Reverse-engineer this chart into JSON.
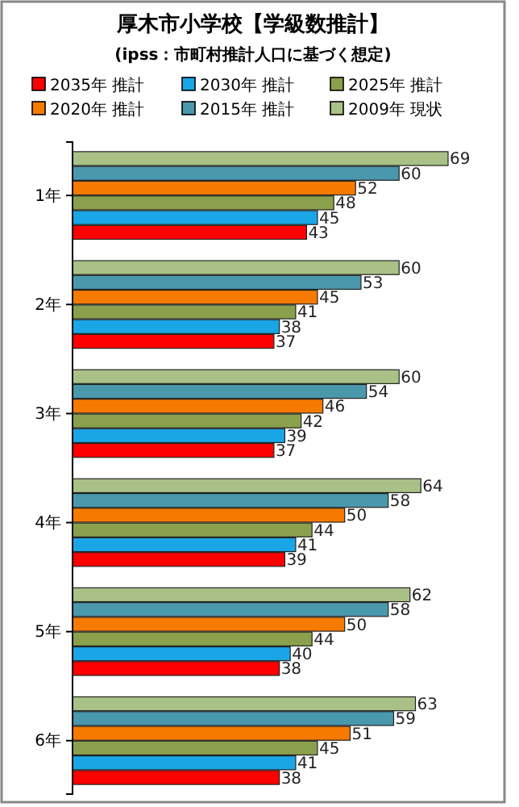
{
  "chart_data": {
    "type": "bar",
    "orientation": "horizontal",
    "title": "厚木市小学校【学級数推計】",
    "subtitle": "(ipss：市町村推計人口に基づく想定)",
    "categories": [
      "1年",
      "2年",
      "3年",
      "4年",
      "5年",
      "6年"
    ],
    "series": [
      {
        "name": "2035年 推計",
        "color": "#ff0000",
        "values": [
          43,
          37,
          37,
          39,
          38,
          38
        ]
      },
      {
        "name": "2030年 推計",
        "color": "#1aa6e6",
        "values": [
          45,
          38,
          39,
          41,
          40,
          41
        ]
      },
      {
        "name": "2025年 推計",
        "color": "#8aa04c",
        "values": [
          48,
          41,
          42,
          44,
          44,
          45
        ]
      },
      {
        "name": "2020年 推計",
        "color": "#f77a00",
        "values": [
          52,
          45,
          46,
          50,
          50,
          51
        ]
      },
      {
        "name": "2015年 推計",
        "color": "#4a98ac",
        "values": [
          60,
          53,
          54,
          58,
          58,
          59
        ]
      },
      {
        "name": "2009年 現状",
        "color": "#a9c186",
        "values": [
          69,
          60,
          60,
          64,
          62,
          63
        ]
      }
    ],
    "data_labels": true,
    "legend": "top",
    "grid": false
  }
}
